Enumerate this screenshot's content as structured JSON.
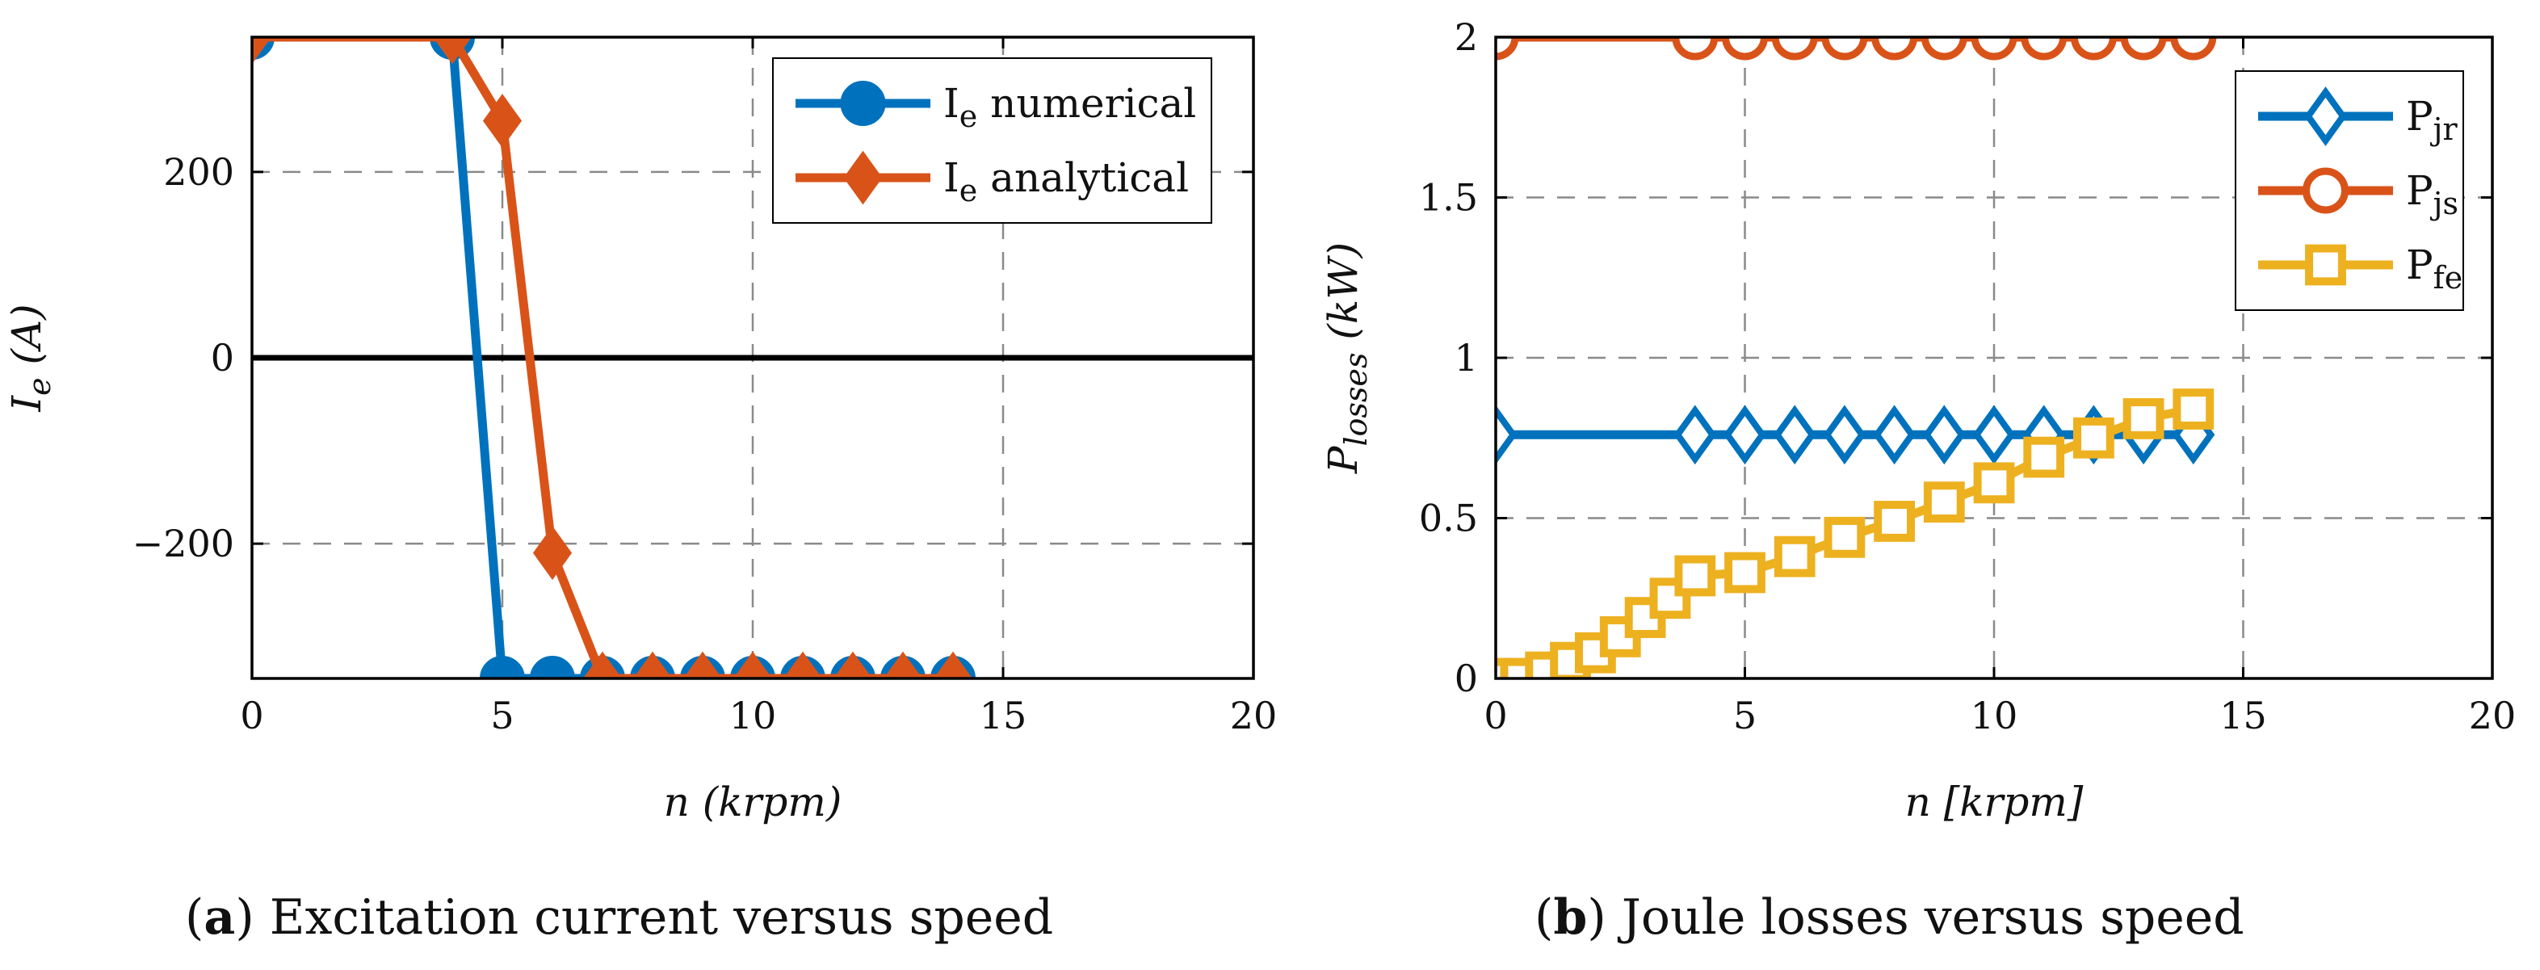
{
  "chart_data": [
    {
      "type": "line",
      "id": "a",
      "caption": {
        "letter": "a",
        "text": "Excitation current versus speed"
      },
      "xlabel": "n (krpm)",
      "ylabel_main": "I",
      "ylabel_sub": "e",
      "ylabel_unit": "(A)",
      "xlim": [
        0,
        20
      ],
      "ylim": [
        -345,
        345
      ],
      "xticks": [
        0,
        5,
        10,
        15,
        20
      ],
      "xtick_labels": [
        "0",
        "5",
        "10",
        "15",
        "20"
      ],
      "yticks": [
        -200,
        0,
        200
      ],
      "ytick_labels": [
        "−200",
        "0",
        "200"
      ],
      "grid": true,
      "zero_line": true,
      "legend_position": "top-right",
      "series": [
        {
          "name": "Ie numerical",
          "label_main": "I",
          "label_sub": "e",
          "label_rest": " numerical",
          "color": "#0072BD",
          "marker": "circle",
          "x": [
            0,
            4,
            5,
            6,
            7,
            8,
            9,
            10,
            11,
            12,
            13,
            14
          ],
          "y": [
            345,
            345,
            -345,
            -345,
            -345,
            -345,
            -345,
            -345,
            -345,
            -345,
            -345,
            -345
          ]
        },
        {
          "name": "Ie analytical",
          "label_main": "I",
          "label_sub": "e",
          "label_rest": " analytical",
          "color": "#D95319",
          "marker": "diamond",
          "x": [
            0,
            4,
            5,
            6,
            7,
            8,
            9,
            10,
            11,
            12,
            13,
            14
          ],
          "y": [
            345,
            345,
            255,
            -210,
            -345,
            -345,
            -345,
            -345,
            -345,
            -345,
            -345,
            -345
          ]
        }
      ]
    },
    {
      "type": "line",
      "id": "b",
      "caption": {
        "letter": "b",
        "text": "Joule losses versus speed"
      },
      "xlabel": "n [krpm]",
      "ylabel_main": "P",
      "ylabel_sub": "losses",
      "ylabel_unit": "(kW)",
      "xlim": [
        0,
        20
      ],
      "ylim": [
        0,
        2
      ],
      "xticks": [
        0,
        5,
        10,
        15,
        20
      ],
      "xtick_labels": [
        "0",
        "5",
        "10",
        "15",
        "20"
      ],
      "yticks": [
        0,
        0.5,
        1,
        1.5,
        2
      ],
      "ytick_labels": [
        "0",
        "0.5",
        "1",
        "1.5",
        "2"
      ],
      "grid": true,
      "zero_line": false,
      "legend_position": "top-right",
      "series": [
        {
          "name": "Pjr",
          "label_main": "P",
          "label_sub": "jr",
          "label_rest": "",
          "color": "#0072BD",
          "marker": "diamond-open",
          "x": [
            0,
            4,
            5,
            6,
            7,
            8,
            9,
            10,
            11,
            12,
            13,
            14
          ],
          "y": [
            0.76,
            0.76,
            0.76,
            0.76,
            0.76,
            0.76,
            0.76,
            0.76,
            0.76,
            0.76,
            0.76,
            0.76
          ]
        },
        {
          "name": "Pjs",
          "label_main": "P",
          "label_sub": "js",
          "label_rest": "",
          "color": "#D95319",
          "marker": "circle-open",
          "x": [
            0,
            4,
            5,
            6,
            7,
            8,
            9,
            10,
            11,
            12,
            13,
            14
          ],
          "y": [
            2,
            2,
            2,
            2,
            2,
            2,
            2,
            2,
            2,
            2,
            2,
            2
          ]
        },
        {
          "name": "Pfe",
          "label_main": "P",
          "label_sub": "fe",
          "label_rest": "",
          "color": "#EDB120",
          "marker": "square-open",
          "x": [
            0,
            0.5,
            1,
            1.5,
            2,
            2.5,
            3,
            3.5,
            4,
            5,
            6,
            7,
            8,
            9,
            10,
            11,
            12,
            13,
            14
          ],
          "y": [
            0,
            0,
            0.02,
            0.05,
            0.08,
            0.13,
            0.19,
            0.25,
            0.32,
            0.33,
            0.38,
            0.44,
            0.49,
            0.55,
            0.61,
            0.69,
            0.75,
            0.81,
            0.84
          ]
        }
      ]
    }
  ]
}
